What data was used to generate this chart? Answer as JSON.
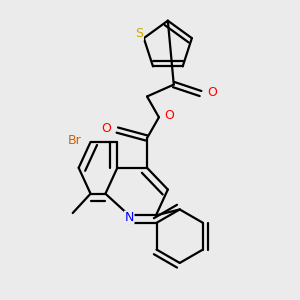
{
  "background_color": "#ebebeb",
  "bond_color": "#000000",
  "atom_colors": {
    "S": "#ccaa00",
    "N": "#0000ff",
    "O": "#ff0000",
    "Br": "#cc6600",
    "C": "#000000"
  },
  "figsize": [
    3.0,
    3.0
  ],
  "dpi": 100,
  "bond_lw": 1.6,
  "double_sep": 0.018,
  "font_size": 8.5
}
